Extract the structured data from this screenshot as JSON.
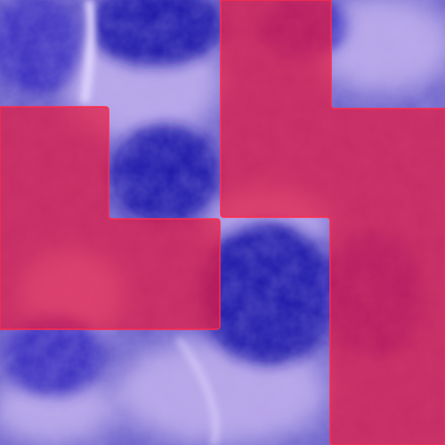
{
  "image": {
    "subject": "stained-tissue-patch",
    "colors": {
      "background": "#6b5fc8",
      "light_stroma": "#b7a6e8",
      "nucleus_dark": "#1f15a8",
      "nucleus_mid": "#3b2fbf",
      "highlight": "#e6dcff",
      "mask_fill": "#e8193f",
      "mask_edge": "#ff2a4a"
    },
    "mask_opacity": 0.72
  }
}
